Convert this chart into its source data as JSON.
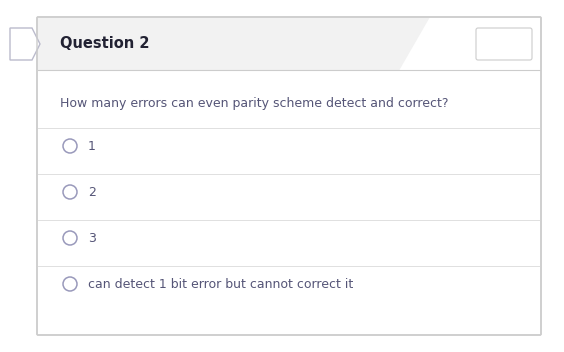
{
  "title": "Question 2",
  "question": "How many errors can even parity scheme detect and correct?",
  "options": [
    "1",
    "2",
    "3",
    "can detect 1 bit error but cannot correct it"
  ],
  "bg_color": "#ffffff",
  "header_bg": "#f2f2f2",
  "border_color": "#cccccc",
  "text_color": "#555577",
  "header_text_color": "#222233",
  "question_color": "#555577",
  "circle_color": "#9999bb",
  "separator_color": "#e0e0e0",
  "outer_bg": "#ffffff",
  "title_fontsize": 10.5,
  "question_fontsize": 9,
  "option_fontsize": 9
}
